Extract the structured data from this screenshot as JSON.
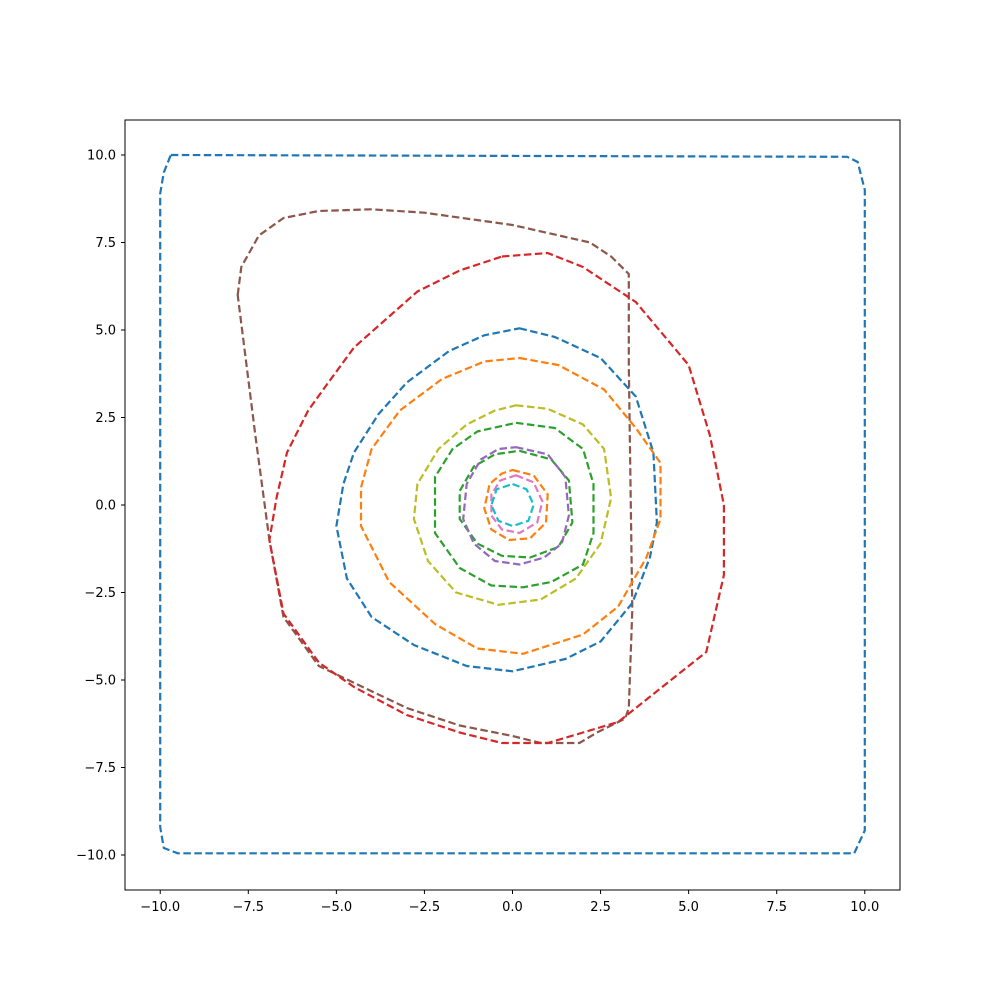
{
  "chart_data": {
    "type": "line",
    "title": "",
    "xlabel": "",
    "ylabel": "",
    "xlim": [
      -11,
      11
    ],
    "ylim": [
      -11,
      11
    ],
    "xticks": [
      -10,
      -7.5,
      -5,
      -2.5,
      0,
      2.5,
      5,
      7.5,
      10
    ],
    "xtick_labels": [
      "−10.0",
      "−7.5",
      "−5.0",
      "−2.5",
      "0.0",
      "2.5",
      "5.0",
      "7.5",
      "10.0"
    ],
    "yticks": [
      10,
      7.5,
      5,
      2.5,
      0,
      -2.5,
      -5,
      -7.5,
      -10
    ],
    "ytick_labels": [
      "10.0",
      "7.5",
      "5.0",
      "2.5",
      "0.0",
      "−2.5",
      "−5.0",
      "−7.5",
      "−10.0"
    ],
    "grid": false,
    "line_style": "dashed",
    "series": [
      {
        "color": "#1f77b4",
        "closed": true,
        "points": [
          [
            -9.7,
            10
          ],
          [
            9.5,
            9.95
          ],
          [
            9.8,
            9.8
          ],
          [
            10,
            9
          ],
          [
            10,
            -9.3
          ],
          [
            9.7,
            -9.95
          ],
          [
            -9.5,
            -9.95
          ],
          [
            -9.9,
            -9.8
          ],
          [
            -10,
            -9.2
          ],
          [
            -10,
            8.9
          ],
          [
            -9.9,
            9.5
          ]
        ]
      },
      {
        "color": "#8c564b",
        "closed": true,
        "points": [
          [
            -7.8,
            6
          ],
          [
            -7.7,
            6.8
          ],
          [
            -7.2,
            7.7
          ],
          [
            -6.5,
            8.2
          ],
          [
            -5.5,
            8.4
          ],
          [
            -4,
            8.45
          ],
          [
            -2.5,
            8.35
          ],
          [
            0,
            8
          ],
          [
            2.2,
            7.5
          ],
          [
            2.8,
            7.1
          ],
          [
            3.3,
            6.6
          ],
          [
            3.3,
            4
          ],
          [
            3.4,
            -3
          ],
          [
            3.3,
            -5.8
          ],
          [
            3.2,
            -6.1
          ],
          [
            2.8,
            -6.3
          ],
          [
            2.4,
            -6.5
          ],
          [
            1.9,
            -6.8
          ],
          [
            1.4,
            -6.8
          ],
          [
            0.8,
            -6.8
          ],
          [
            0,
            -6.6
          ],
          [
            -1.5,
            -6.3
          ],
          [
            -3,
            -5.8
          ],
          [
            -5.5,
            -4.6
          ],
          [
            -6.5,
            -3.2
          ],
          [
            -6.9,
            -1
          ],
          [
            -7.3,
            2
          ]
        ]
      },
      {
        "color": "#d62728",
        "closed": true,
        "points": [
          [
            -0.3,
            7.1
          ],
          [
            1,
            7.2
          ],
          [
            2,
            6.8
          ],
          [
            3.5,
            5.8
          ],
          [
            5,
            4
          ],
          [
            5.6,
            2
          ],
          [
            6,
            0
          ],
          [
            6,
            -2
          ],
          [
            5.5,
            -4.2
          ],
          [
            4.5,
            -5
          ],
          [
            3,
            -6.2
          ],
          [
            2,
            -6.5
          ],
          [
            1,
            -6.8
          ],
          [
            -0.3,
            -6.8
          ],
          [
            -1.5,
            -6.5
          ],
          [
            -3,
            -6
          ],
          [
            -4.5,
            -5.2
          ],
          [
            -5.5,
            -4.5
          ],
          [
            -6.5,
            -3.1
          ],
          [
            -6.9,
            -1
          ],
          [
            -6.7,
            0.2
          ],
          [
            -6.4,
            1.5
          ],
          [
            -5.8,
            2.7
          ],
          [
            -5.3,
            3.4
          ],
          [
            -4.5,
            4.5
          ],
          [
            -2.7,
            6.1
          ],
          [
            -1.5,
            6.7
          ]
        ]
      },
      {
        "color": "#1f77b4",
        "closed": true,
        "points": [
          [
            0.2,
            5.05
          ],
          [
            1.2,
            4.8
          ],
          [
            2.5,
            4.2
          ],
          [
            3.5,
            3.1
          ],
          [
            4,
            1.5
          ],
          [
            4.1,
            -0.5
          ],
          [
            3.9,
            -1.5
          ],
          [
            3.4,
            -2.8
          ],
          [
            2.5,
            -3.9
          ],
          [
            1.5,
            -4.4
          ],
          [
            0,
            -4.75
          ],
          [
            -1.3,
            -4.6
          ],
          [
            -2.8,
            -4
          ],
          [
            -4,
            -3.2
          ],
          [
            -4.7,
            -2.1
          ],
          [
            -5,
            -0.6
          ],
          [
            -4.8,
            0.6
          ],
          [
            -4.5,
            1.5
          ],
          [
            -3.8,
            2.6
          ],
          [
            -3,
            3.5
          ],
          [
            -1.8,
            4.4
          ],
          [
            -0.8,
            4.85
          ]
        ]
      },
      {
        "color": "#ff7f0e",
        "closed": true,
        "points": [
          [
            0.2,
            4.2
          ],
          [
            1.3,
            4
          ],
          [
            2.6,
            3.3
          ],
          [
            3.5,
            2.2
          ],
          [
            4.2,
            1.2
          ],
          [
            4.2,
            -0.4
          ],
          [
            3.8,
            -1.5
          ],
          [
            3,
            -2.9
          ],
          [
            2,
            -3.7
          ],
          [
            0.3,
            -4.25
          ],
          [
            -1,
            -4.1
          ],
          [
            -2.2,
            -3.4
          ],
          [
            -3.5,
            -2.2
          ],
          [
            -4.3,
            -0.6
          ],
          [
            -4.3,
            0.5
          ],
          [
            -4,
            1.6
          ],
          [
            -3.2,
            2.7
          ],
          [
            -2,
            3.6
          ],
          [
            -0.8,
            4.1
          ]
        ]
      },
      {
        "color": "#bcbd22",
        "closed": true,
        "points": [
          [
            0.1,
            2.85
          ],
          [
            1,
            2.75
          ],
          [
            2,
            2.3
          ],
          [
            2.6,
            1.6
          ],
          [
            2.8,
            0.2
          ],
          [
            2.5,
            -1.1
          ],
          [
            1.8,
            -2.1
          ],
          [
            0.8,
            -2.7
          ],
          [
            -0.4,
            -2.85
          ],
          [
            -1.6,
            -2.5
          ],
          [
            -2.4,
            -1.6
          ],
          [
            -2.8,
            -0.4
          ],
          [
            -2.7,
            0.6
          ],
          [
            -2.1,
            1.6
          ],
          [
            -1.3,
            2.3
          ],
          [
            -0.5,
            2.7
          ]
        ]
      },
      {
        "color": "#2ca02c",
        "closed": true,
        "points": [
          [
            0.1,
            2.35
          ],
          [
            1.2,
            2.2
          ],
          [
            2,
            1.6
          ],
          [
            2.3,
            0.6
          ],
          [
            2.3,
            -0.8
          ],
          [
            2,
            -1.7
          ],
          [
            1.1,
            -2.2
          ],
          [
            0.3,
            -2.35
          ],
          [
            -0.6,
            -2.3
          ],
          [
            -1.5,
            -1.8
          ],
          [
            -2.2,
            -0.8
          ],
          [
            -2.2,
            0.8
          ],
          [
            -1.7,
            1.6
          ],
          [
            -1,
            2.1
          ]
        ]
      },
      {
        "color": "#2ca02c",
        "closed": true,
        "points": [
          [
            0.2,
            1.55
          ],
          [
            1.1,
            1.3
          ],
          [
            1.6,
            0.7
          ],
          [
            1.7,
            -0.5
          ],
          [
            1.3,
            -1.2
          ],
          [
            0.5,
            -1.5
          ],
          [
            -0.3,
            -1.45
          ],
          [
            -1,
            -1.1
          ],
          [
            -1.5,
            -0.4
          ],
          [
            -1.5,
            0.4
          ],
          [
            -1.1,
            1.1
          ],
          [
            -0.5,
            1.45
          ]
        ]
      },
      {
        "color": "#9467bd",
        "closed": true,
        "points": [
          [
            0.1,
            1.65
          ],
          [
            1,
            1.45
          ],
          [
            1.5,
            0.8
          ],
          [
            1.6,
            -0.3
          ],
          [
            1.4,
            -1.1
          ],
          [
            0.9,
            -1.5
          ],
          [
            0.2,
            -1.7
          ],
          [
            -0.5,
            -1.6
          ],
          [
            -1.1,
            -1.1
          ],
          [
            -1.4,
            -0.4
          ],
          [
            -1.3,
            0.6
          ],
          [
            -0.9,
            1.3
          ],
          [
            -0.4,
            1.6
          ]
        ]
      },
      {
        "color": "#ff7f0e",
        "closed": true,
        "points": [
          [
            0,
            1
          ],
          [
            0.6,
            0.85
          ],
          [
            1,
            0.3
          ],
          [
            0.95,
            -0.5
          ],
          [
            0.5,
            -0.95
          ],
          [
            -0.1,
            -1
          ],
          [
            -0.6,
            -0.7
          ],
          [
            -0.8,
            -0.1
          ],
          [
            -0.65,
            0.6
          ],
          [
            -0.3,
            0.9
          ]
        ]
      },
      {
        "color": "#e377c2",
        "closed": true,
        "points": [
          [
            0.1,
            0.85
          ],
          [
            0.6,
            0.65
          ],
          [
            0.85,
            0.1
          ],
          [
            0.7,
            -0.5
          ],
          [
            0.2,
            -0.8
          ],
          [
            -0.3,
            -0.7
          ],
          [
            -0.6,
            -0.3
          ],
          [
            -0.6,
            0.3
          ],
          [
            -0.35,
            0.7
          ]
        ]
      },
      {
        "color": "#17becf",
        "closed": true,
        "points": [
          [
            0,
            0.6
          ],
          [
            0.4,
            0.45
          ],
          [
            0.6,
            0
          ],
          [
            0.45,
            -0.45
          ],
          [
            0,
            -0.6
          ],
          [
            -0.4,
            -0.45
          ],
          [
            -0.6,
            0
          ],
          [
            -0.45,
            0.45
          ]
        ]
      }
    ]
  }
}
